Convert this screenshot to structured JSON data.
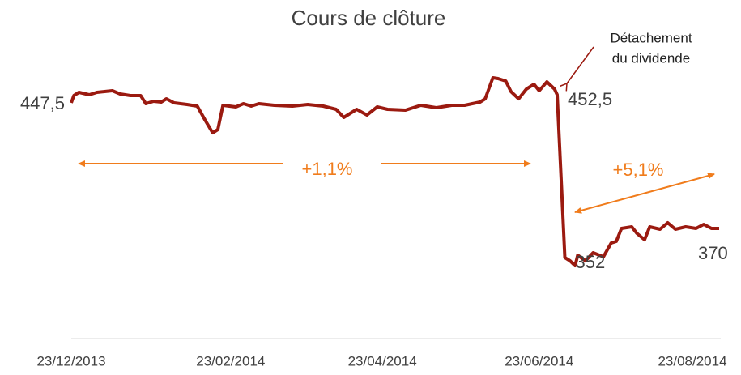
{
  "chart_data": {
    "type": "line",
    "title": "Cours de clôture",
    "annotations": [
      "+1,1%",
      "+5,1%",
      "Détachement",
      "du dividende"
    ],
    "color": "#9b1a10",
    "x": [
      "2013-12-23",
      "2013-12-24",
      "2013-12-26",
      "2013-12-30",
      "2014-01-02",
      "2014-01-05",
      "2014-01-08",
      "2014-01-11",
      "2014-01-15",
      "2014-01-19",
      "2014-01-21",
      "2014-01-24",
      "2014-01-27",
      "2014-01-29",
      "2014-02-01",
      "2014-02-06",
      "2014-02-10",
      "2014-02-13",
      "2014-02-16",
      "2014-02-18",
      "2014-02-20",
      "2014-02-25",
      "2014-02-28",
      "2014-03-03",
      "2014-03-06",
      "2014-03-12",
      "2014-03-19",
      "2014-03-25",
      "2014-03-31",
      "2014-04-05",
      "2014-04-08",
      "2014-04-13",
      "2014-04-17",
      "2014-04-21",
      "2014-04-25",
      "2014-05-02",
      "2014-05-08",
      "2014-05-14",
      "2014-05-20",
      "2014-05-25",
      "2014-05-28",
      "2014-05-31",
      "2014-06-02",
      "2014-06-05",
      "2014-06-07",
      "2014-06-10",
      "2014-06-12",
      "2014-06-15",
      "2014-06-18",
      "2014-06-21",
      "2014-06-23",
      "2014-06-26",
      "2014-06-29",
      "2014-06-30",
      "2014-07-03",
      "2014-07-05",
      "2014-07-07",
      "2014-07-08",
      "2014-07-11",
      "2014-07-14",
      "2014-07-18",
      "2014-07-21",
      "2014-07-23",
      "2014-07-25",
      "2014-07-29",
      "2014-07-31",
      "2014-08-03",
      "2014-08-05",
      "2014-08-09",
      "2014-08-12",
      "2014-08-15",
      "2014-08-19",
      "2014-08-23",
      "2014-08-26",
      "2014-08-29",
      "2014-09-01"
    ],
    "values": [
      447.5,
      452,
      454,
      452.5,
      454,
      454.5,
      455,
      453,
      452,
      452,
      447,
      448.5,
      448,
      450,
      447.5,
      446.5,
      445.5,
      437,
      429,
      431,
      446,
      445,
      447,
      445.5,
      447,
      446,
      445.5,
      446.5,
      445.5,
      443.5,
      438.5,
      443.5,
      440,
      445,
      443.5,
      443,
      446,
      444.5,
      446,
      446,
      447,
      448,
      450,
      463,
      462.5,
      461,
      454.5,
      450,
      456,
      459,
      455,
      460.5,
      456,
      452.5,
      352,
      350,
      347,
      353.5,
      350,
      355,
      352.5,
      361,
      362,
      370,
      371,
      367,
      363,
      371,
      369.5,
      373.5,
      369.5,
      371,
      370,
      372.5,
      370,
      370
    ],
    "value_labels": [
      "447,5",
      null,
      null,
      null,
      null,
      null,
      null,
      null,
      null,
      null,
      null,
      null,
      null,
      null,
      null,
      null,
      null,
      null,
      null,
      null,
      null,
      null,
      null,
      null,
      null,
      null,
      null,
      null,
      null,
      null,
      null,
      null,
      null,
      null,
      null,
      null,
      null,
      null,
      null,
      null,
      null,
      null,
      null,
      null,
      null,
      null,
      null,
      null,
      null,
      null,
      null,
      null,
      null,
      "452,5",
      "352",
      null,
      null,
      null,
      null,
      null,
      null,
      null,
      null,
      null,
      null,
      null,
      null,
      null,
      null,
      null,
      null,
      null,
      null,
      null,
      null,
      "370"
    ],
    "xlim": [
      "2013-12-23",
      "2014-09-01"
    ],
    "xticks": [
      {
        "value": "2013-12-23",
        "label": "23/12/2013"
      },
      {
        "value": "2014-02-23",
        "label": "23/02/2014"
      },
      {
        "value": "2014-04-23",
        "label": "23/04/2014"
      },
      {
        "value": "2014-06-23",
        "label": "23/06/2014"
      },
      {
        "value": "2014-08-23",
        "label": "23/08/2014"
      }
    ],
    "ylim": [
      302,
      480
    ]
  }
}
